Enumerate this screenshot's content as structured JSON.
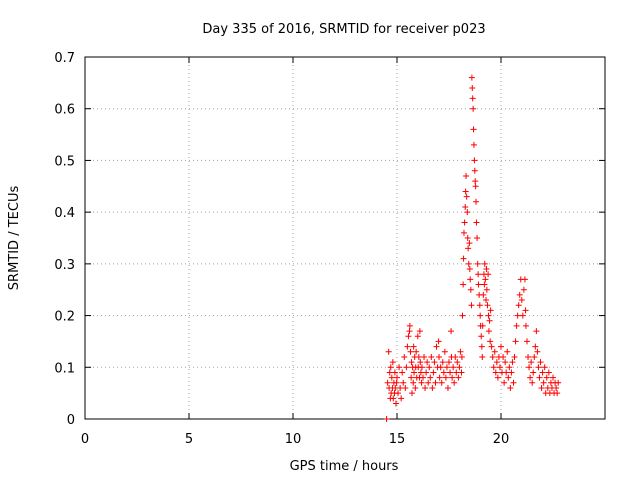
{
  "chart_data": {
    "type": "scatter",
    "title": "Day 335 of 2016, SRMTID for receiver p023",
    "xlabel": "GPS time / hours",
    "ylabel": "SRMTID / TECUs",
    "xlim": [
      0,
      25
    ],
    "ylim": [
      0,
      0.7
    ],
    "xticks": [
      0,
      5,
      10,
      15,
      20
    ],
    "xtick_labels": [
      "0",
      "5",
      "10",
      "15",
      "20"
    ],
    "yticks": [
      0,
      0.1,
      0.2,
      0.3,
      0.4,
      0.5,
      0.6,
      0.7
    ],
    "ytick_labels": [
      "0",
      "0.1",
      "0.2",
      "0.3",
      "0.4",
      "0.5",
      "0.6",
      "0.7"
    ],
    "grid": true,
    "marker": "+",
    "color": "#ff0000",
    "series": [
      {
        "name": "p023",
        "points": [
          [
            14.5,
            0.0
          ],
          [
            14.55,
            0.07
          ],
          [
            14.6,
            0.13
          ],
          [
            14.62,
            0.06
          ],
          [
            14.65,
            0.09
          ],
          [
            14.68,
            0.04
          ],
          [
            14.7,
            0.1
          ],
          [
            14.72,
            0.05
          ],
          [
            14.75,
            0.08
          ],
          [
            14.78,
            0.06
          ],
          [
            14.8,
            0.11
          ],
          [
            14.82,
            0.04
          ],
          [
            14.85,
            0.07
          ],
          [
            14.88,
            0.05
          ],
          [
            14.9,
            0.09
          ],
          [
            14.92,
            0.06
          ],
          [
            14.95,
            0.03
          ],
          [
            14.98,
            0.07
          ],
          [
            15.0,
            0.08
          ],
          [
            15.05,
            0.05
          ],
          [
            15.1,
            0.1
          ],
          [
            15.15,
            0.06
          ],
          [
            15.2,
            0.04
          ],
          [
            15.25,
            0.09
          ],
          [
            15.3,
            0.07
          ],
          [
            15.35,
            0.12
          ],
          [
            15.4,
            0.06
          ],
          [
            15.45,
            0.1
          ],
          [
            15.5,
            0.14
          ],
          [
            15.55,
            0.16
          ],
          [
            15.6,
            0.17
          ],
          [
            15.62,
            0.18
          ],
          [
            15.65,
            0.13
          ],
          [
            15.68,
            0.08
          ],
          [
            15.7,
            0.11
          ],
          [
            15.72,
            0.05
          ],
          [
            15.75,
            0.1
          ],
          [
            15.78,
            0.07
          ],
          [
            15.8,
            0.14
          ],
          [
            15.82,
            0.09
          ],
          [
            15.85,
            0.12
          ],
          [
            15.88,
            0.06
          ],
          [
            15.9,
            0.1
          ],
          [
            15.92,
            0.13
          ],
          [
            15.95,
            0.08
          ],
          [
            16.0,
            0.16
          ],
          [
            16.02,
            0.1
          ],
          [
            16.05,
            0.12
          ],
          [
            16.08,
            0.08
          ],
          [
            16.1,
            0.17
          ],
          [
            16.12,
            0.11
          ],
          [
            16.15,
            0.09
          ],
          [
            16.18,
            0.07
          ],
          [
            16.2,
            0.1
          ],
          [
            16.25,
            0.08
          ],
          [
            16.3,
            0.12
          ],
          [
            16.35,
            0.06
          ],
          [
            16.4,
            0.09
          ],
          [
            16.45,
            0.11
          ],
          [
            16.5,
            0.07
          ],
          [
            16.55,
            0.1
          ],
          [
            16.6,
            0.08
          ],
          [
            16.65,
            0.12
          ],
          [
            16.7,
            0.06
          ],
          [
            16.75,
            0.09
          ],
          [
            16.8,
            0.11
          ],
          [
            16.85,
            0.07
          ],
          [
            16.9,
            0.14
          ],
          [
            16.95,
            0.1
          ],
          [
            17.0,
            0.15
          ],
          [
            17.02,
            0.12
          ],
          [
            17.05,
            0.08
          ],
          [
            17.1,
            0.1
          ],
          [
            17.15,
            0.07
          ],
          [
            17.2,
            0.11
          ],
          [
            17.25,
            0.09
          ],
          [
            17.3,
            0.13
          ],
          [
            17.35,
            0.08
          ],
          [
            17.4,
            0.1
          ],
          [
            17.45,
            0.06
          ],
          [
            17.5,
            0.11
          ],
          [
            17.55,
            0.09
          ],
          [
            17.6,
            0.17
          ],
          [
            17.62,
            0.12
          ],
          [
            17.65,
            0.08
          ],
          [
            17.7,
            0.1
          ],
          [
            17.75,
            0.07
          ],
          [
            17.8,
            0.12
          ],
          [
            17.85,
            0.09
          ],
          [
            17.9,
            0.11
          ],
          [
            17.95,
            0.08
          ],
          [
            18.0,
            0.1
          ],
          [
            18.05,
            0.13
          ],
          [
            18.1,
            0.09
          ],
          [
            18.12,
            0.12
          ],
          [
            18.15,
            0.2
          ],
          [
            18.18,
            0.26
          ],
          [
            18.2,
            0.31
          ],
          [
            18.22,
            0.36
          ],
          [
            18.25,
            0.38
          ],
          [
            18.28,
            0.41
          ],
          [
            18.3,
            0.44
          ],
          [
            18.32,
            0.47
          ],
          [
            18.35,
            0.43
          ],
          [
            18.38,
            0.4
          ],
          [
            18.4,
            0.35
          ],
          [
            18.42,
            0.33
          ],
          [
            18.45,
            0.3
          ],
          [
            18.48,
            0.34
          ],
          [
            18.5,
            0.29
          ],
          [
            18.52,
            0.27
          ],
          [
            18.55,
            0.25
          ],
          [
            18.58,
            0.22
          ],
          [
            18.6,
            0.66
          ],
          [
            18.62,
            0.64
          ],
          [
            18.64,
            0.62
          ],
          [
            18.66,
            0.6
          ],
          [
            18.68,
            0.56
          ],
          [
            18.7,
            0.53
          ],
          [
            18.72,
            0.5
          ],
          [
            18.74,
            0.48
          ],
          [
            18.76,
            0.46
          ],
          [
            18.78,
            0.45
          ],
          [
            18.8,
            0.42
          ],
          [
            18.82,
            0.38
          ],
          [
            18.85,
            0.35
          ],
          [
            18.88,
            0.3
          ],
          [
            18.9,
            0.28
          ],
          [
            18.92,
            0.26
          ],
          [
            18.95,
            0.24
          ],
          [
            18.98,
            0.22
          ],
          [
            19.0,
            0.2
          ],
          [
            19.02,
            0.18
          ],
          [
            19.05,
            0.16
          ],
          [
            19.08,
            0.14
          ],
          [
            19.1,
            0.12
          ],
          [
            19.12,
            0.18
          ],
          [
            19.15,
            0.24
          ],
          [
            19.18,
            0.28
          ],
          [
            19.2,
            0.26
          ],
          [
            19.22,
            0.3
          ],
          [
            19.25,
            0.27
          ],
          [
            19.28,
            0.23
          ],
          [
            19.3,
            0.29
          ],
          [
            19.32,
            0.25
          ],
          [
            19.35,
            0.22
          ],
          [
            19.38,
            0.28
          ],
          [
            19.4,
            0.2
          ],
          [
            19.42,
            0.17
          ],
          [
            19.45,
            0.19
          ],
          [
            19.48,
            0.15
          ],
          [
            19.5,
            0.21
          ],
          [
            19.55,
            0.14
          ],
          [
            19.6,
            0.12
          ],
          [
            19.65,
            0.1
          ],
          [
            19.7,
            0.13
          ],
          [
            19.75,
            0.09
          ],
          [
            19.8,
            0.11
          ],
          [
            19.85,
            0.08
          ],
          [
            19.9,
            0.12
          ],
          [
            19.95,
            0.1
          ],
          [
            20.0,
            0.14
          ],
          [
            20.05,
            0.09
          ],
          [
            20.1,
            0.12
          ],
          [
            20.15,
            0.07
          ],
          [
            20.2,
            0.11
          ],
          [
            20.25,
            0.09
          ],
          [
            20.3,
            0.13
          ],
          [
            20.35,
            0.08
          ],
          [
            20.4,
            0.1
          ],
          [
            20.45,
            0.06
          ],
          [
            20.5,
            0.09
          ],
          [
            20.55,
            0.11
          ],
          [
            20.6,
            0.07
          ],
          [
            20.65,
            0.12
          ],
          [
            20.7,
            0.15
          ],
          [
            20.75,
            0.18
          ],
          [
            20.8,
            0.2
          ],
          [
            20.85,
            0.22
          ],
          [
            20.9,
            0.24
          ],
          [
            20.95,
            0.27
          ],
          [
            21.0,
            0.23
          ],
          [
            21.05,
            0.2
          ],
          [
            21.1,
            0.25
          ],
          [
            21.15,
            0.27
          ],
          [
            21.18,
            0.21
          ],
          [
            21.2,
            0.18
          ],
          [
            21.25,
            0.15
          ],
          [
            21.3,
            0.12
          ],
          [
            21.35,
            0.1
          ],
          [
            21.4,
            0.08
          ],
          [
            21.45,
            0.11
          ],
          [
            21.5,
            0.07
          ],
          [
            21.55,
            0.09
          ],
          [
            21.6,
            0.12
          ],
          [
            21.65,
            0.14
          ],
          [
            21.7,
            0.17
          ],
          [
            21.75,
            0.13
          ],
          [
            21.8,
            0.1
          ],
          [
            21.85,
            0.08
          ],
          [
            21.9,
            0.11
          ],
          [
            21.95,
            0.06
          ],
          [
            22.0,
            0.09
          ],
          [
            22.05,
            0.07
          ],
          [
            22.1,
            0.1
          ],
          [
            22.15,
            0.05
          ],
          [
            22.2,
            0.08
          ],
          [
            22.25,
            0.06
          ],
          [
            22.3,
            0.09
          ],
          [
            22.35,
            0.05
          ],
          [
            22.4,
            0.07
          ],
          [
            22.45,
            0.06
          ],
          [
            22.5,
            0.08
          ],
          [
            22.55,
            0.05
          ],
          [
            22.6,
            0.07
          ],
          [
            22.65,
            0.06
          ],
          [
            22.7,
            0.05
          ],
          [
            22.75,
            0.07
          ]
        ]
      }
    ]
  }
}
